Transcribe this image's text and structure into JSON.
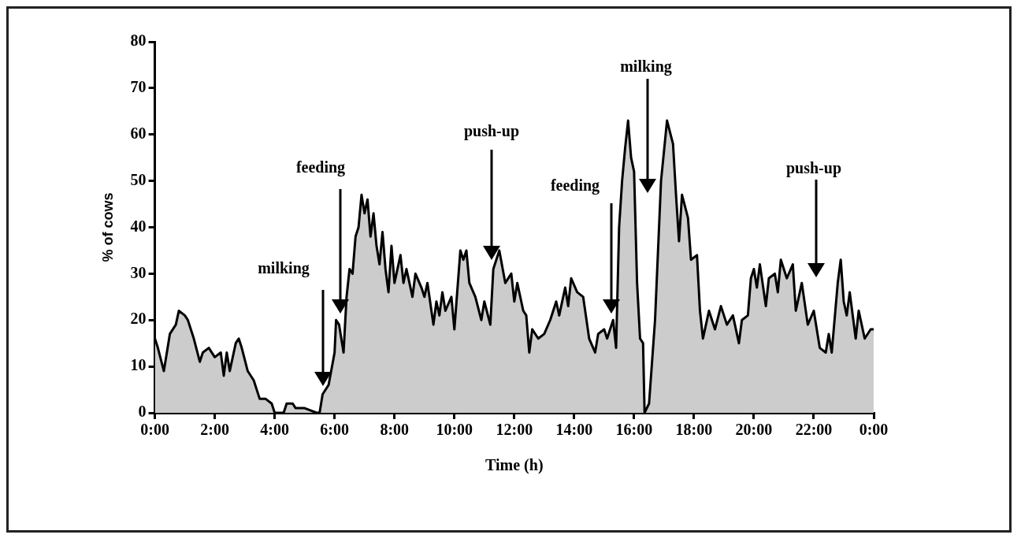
{
  "chart_data": {
    "type": "area",
    "xlabel": "Time (h)",
    "ylabel": "% of cows",
    "x": [
      0,
      0.1,
      0.3,
      0.5,
      0.7,
      0.8,
      1.0,
      1.1,
      1.3,
      1.5,
      1.6,
      1.8,
      2.0,
      2.2,
      2.3,
      2.4,
      2.5,
      2.7,
      2.8,
      2.9,
      3.1,
      3.3,
      3.5,
      3.7,
      3.9,
      4.0,
      4.3,
      4.4,
      4.6,
      4.7,
      5.0,
      5.4,
      5.5,
      5.6,
      5.8,
      6.0,
      6.05,
      6.15,
      6.3,
      6.4,
      6.5,
      6.6,
      6.7,
      6.8,
      6.9,
      7.0,
      7.1,
      7.2,
      7.3,
      7.4,
      7.5,
      7.6,
      7.7,
      7.8,
      7.9,
      8.0,
      8.2,
      8.3,
      8.4,
      8.6,
      8.7,
      8.9,
      9.0,
      9.1,
      9.3,
      9.4,
      9.5,
      9.6,
      9.7,
      9.9,
      10.0,
      10.2,
      10.3,
      10.4,
      10.5,
      10.7,
      10.9,
      11.0,
      11.2,
      11.3,
      11.5,
      11.7,
      11.9,
      12.0,
      12.1,
      12.3,
      12.4,
      12.5,
      12.6,
      12.8,
      13.0,
      13.2,
      13.4,
      13.5,
      13.7,
      13.8,
      13.9,
      14.1,
      14.3,
      14.5,
      14.7,
      14.8,
      15.0,
      15.1,
      15.3,
      15.4,
      15.5,
      15.6,
      15.7,
      15.8,
      15.9,
      16.0,
      16.1,
      16.2,
      16.3,
      16.35,
      16.5,
      16.7,
      16.8,
      16.9,
      17.1,
      17.3,
      17.4,
      17.5,
      17.6,
      17.8,
      17.9,
      18.1,
      18.2,
      18.3,
      18.5,
      18.7,
      18.9,
      19.1,
      19.3,
      19.5,
      19.6,
      19.8,
      19.9,
      20.0,
      20.1,
      20.2,
      20.4,
      20.5,
      20.7,
      20.8,
      20.9,
      21.1,
      21.3,
      21.4,
      21.6,
      21.8,
      22.0,
      22.2,
      22.4,
      22.5,
      22.6,
      22.8,
      22.9,
      23.0,
      23.1,
      23.2,
      23.4,
      23.5,
      23.7,
      23.9,
      24.0
    ],
    "series": [
      {
        "color": "#cccccc",
        "values": [
          16,
          14,
          9,
          17,
          19,
          22,
          21,
          20,
          16,
          11,
          13,
          14,
          12,
          13,
          8,
          13,
          9,
          15,
          16,
          14,
          9,
          7,
          3,
          3,
          2,
          0,
          0,
          2,
          2,
          1,
          1,
          0,
          0,
          4,
          6,
          13,
          20,
          19,
          13,
          25,
          31,
          30,
          38,
          40,
          47,
          43,
          46,
          38,
          43,
          36,
          32,
          39,
          31,
          26,
          36,
          28,
          34,
          28,
          31,
          25,
          30,
          27,
          25,
          28,
          19,
          24,
          21,
          26,
          22,
          25,
          18,
          35,
          33,
          35,
          28,
          25,
          20,
          24,
          19,
          31,
          35,
          28,
          30,
          24,
          28,
          22,
          21,
          13,
          18,
          16,
          17,
          20,
          24,
          21,
          27,
          23,
          29,
          26,
          25,
          16,
          13,
          17,
          18,
          16,
          20,
          14,
          40,
          50,
          57,
          63,
          55,
          52,
          28,
          16,
          15,
          0,
          2,
          20,
          35,
          50,
          63,
          58,
          47,
          37,
          47,
          42,
          33,
          34,
          22,
          16,
          22,
          18,
          23,
          19,
          21,
          15,
          20,
          21,
          29,
          31,
          27,
          32,
          23,
          29,
          30,
          26,
          33,
          29,
          32,
          22,
          28,
          19,
          22,
          14,
          13,
          17,
          13,
          28,
          33,
          24,
          21,
          26,
          16,
          22,
          16,
          18,
          18
        ]
      }
    ],
    "xlim": [
      0,
      24
    ],
    "xticks": [
      {
        "value": 0,
        "label": "0:00"
      },
      {
        "value": 2,
        "label": "2:00"
      },
      {
        "value": 4,
        "label": "4:00"
      },
      {
        "value": 6,
        "label": "6:00"
      },
      {
        "value": 8,
        "label": "8:00"
      },
      {
        "value": 10,
        "label": "10:00"
      },
      {
        "value": 12,
        "label": "12:00"
      },
      {
        "value": 14,
        "label": "14:00"
      },
      {
        "value": 16,
        "label": "16:00"
      },
      {
        "value": 18,
        "label": "18:00"
      },
      {
        "value": 20,
        "label": "20:00"
      },
      {
        "value": 22,
        "label": "22:00"
      },
      {
        "value": 24,
        "label": "0:00"
      }
    ],
    "ylim": [
      0,
      80
    ],
    "yticks": [
      0,
      10,
      20,
      30,
      40,
      50,
      60,
      70,
      80
    ],
    "grid": false,
    "legend": false,
    "annotations": [
      "milking",
      "feeding",
      "push-up",
      "feeding",
      "milking",
      "push-up"
    ]
  }
}
